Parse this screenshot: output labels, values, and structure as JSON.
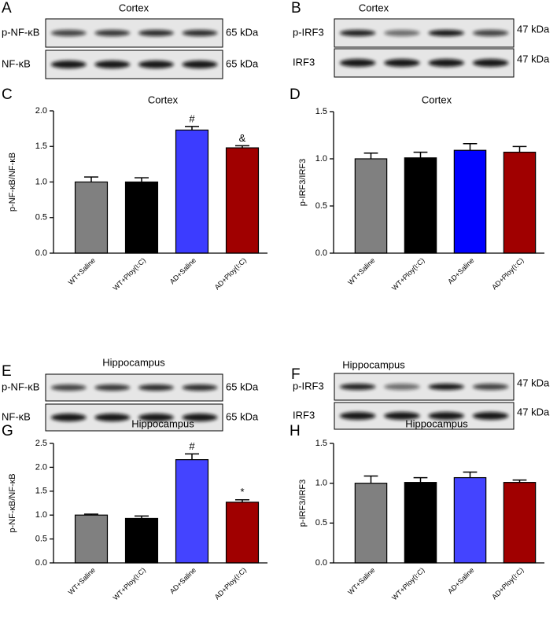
{
  "blots": [
    {
      "letter": "A",
      "title": "Cortex",
      "rows": [
        {
          "label": "p-NF-κB",
          "size": "65 kDa"
        },
        {
          "label": "NF-κB",
          "size": "65 kDa"
        }
      ]
    },
    {
      "letter": "B",
      "title": "Cortex",
      "rows": [
        {
          "label": "p-IRF3",
          "size": "47 kDa"
        },
        {
          "label": "IRF3",
          "size": "47 kDa"
        }
      ]
    },
    {
      "letter": "E",
      "title": "Hippocampus",
      "rows": [
        {
          "label": "p-NF-κB",
          "size": "65 kDa"
        },
        {
          "label": "NF-κB",
          "size": "65 kDa"
        }
      ]
    },
    {
      "letter": "F",
      "title": "Hippocampus",
      "rows": [
        {
          "label": "p-IRF3",
          "size": "47 kDa"
        },
        {
          "label": "IRF3",
          "size": "47 kDa"
        }
      ]
    }
  ],
  "chart_data": [
    {
      "type": "bar",
      "letter": "C",
      "title": "Cortex",
      "ylabel": "p-NF-κB/NF-κB",
      "categories": [
        "WT+Saline",
        "WT+Ploy(I:C)",
        "AD+Saline",
        "AD+Ploy(I:C)"
      ],
      "values": [
        1.0,
        1.0,
        1.73,
        1.48
      ],
      "errors": [
        0.07,
        0.06,
        0.05,
        0.03
      ],
      "colors": [
        "#808080",
        "#000000",
        "#3c3cff",
        "#a00000"
      ],
      "markers": [
        null,
        null,
        "#",
        "&"
      ],
      "ylim": [
        0,
        2
      ],
      "yticks": [
        {
          "value": 0,
          "label": "0.0"
        },
        {
          "value": 0.5,
          "label": "0.5"
        },
        {
          "value": 1,
          "label": "1.0"
        },
        {
          "value": 1.5,
          "label": "1.5"
        },
        {
          "value": 2,
          "label": "2.0"
        }
      ]
    },
    {
      "type": "bar",
      "letter": "D",
      "title": "Cortex",
      "ylabel": "p-IRF3/IRF3",
      "categories": [
        "WT+Saline",
        "WT+Ploy(I:C)",
        "AD+Saline",
        "AD+Ploy(I:C)"
      ],
      "values": [
        1.0,
        1.01,
        1.09,
        1.07
      ],
      "errors": [
        0.06,
        0.06,
        0.07,
        0.06
      ],
      "colors": [
        "#808080",
        "#000000",
        "#0000ff",
        "#a00000"
      ],
      "markers": [
        null,
        null,
        null,
        null
      ],
      "ylim": [
        0,
        1.5
      ],
      "yticks": [
        {
          "value": 0,
          "label": "0.0"
        },
        {
          "value": 0.5,
          "label": "0.5"
        },
        {
          "value": 1,
          "label": "1.0"
        },
        {
          "value": 1.5,
          "label": "1.5"
        }
      ]
    },
    {
      "type": "bar",
      "letter": "G",
      "title": "Hippocampus",
      "ylabel": "p-NF-κB/NF-κB",
      "categories": [
        "WT+Saline",
        "WT+Ploy(I:C)",
        "AD+Saline",
        "AD+Ploy(I:C)"
      ],
      "values": [
        1.0,
        0.93,
        2.16,
        1.27
      ],
      "errors": [
        0.02,
        0.05,
        0.12,
        0.05
      ],
      "colors": [
        "#808080",
        "#000000",
        "#4444ff",
        "#a00000"
      ],
      "markers": [
        null,
        null,
        "#",
        "*"
      ],
      "ylim": [
        0,
        2.5
      ],
      "yticks": [
        {
          "value": 0,
          "label": "0.0"
        },
        {
          "value": 0.5,
          "label": "0.5"
        },
        {
          "value": 1,
          "label": "1.0"
        },
        {
          "value": 1.5,
          "label": "1.5"
        },
        {
          "value": 2,
          "label": "2.0"
        },
        {
          "value": 2.5,
          "label": "2.5"
        }
      ]
    },
    {
      "type": "bar",
      "letter": "H",
      "title": "Hippocampus",
      "ylabel": "p-IRF3/IRF3",
      "categories": [
        "WT+Saline",
        "WT+Ploy(I:C)",
        "AD+Saline",
        "AD+Ploy(I:C)"
      ],
      "values": [
        1.0,
        1.01,
        1.07,
        1.01
      ],
      "errors": [
        0.09,
        0.06,
        0.07,
        0.03
      ],
      "colors": [
        "#808080",
        "#000000",
        "#4444ff",
        "#a00000"
      ],
      "markers": [
        null,
        null,
        null,
        null
      ],
      "ylim": [
        0,
        1.5
      ],
      "yticks": [
        {
          "value": 0,
          "label": "0.0"
        },
        {
          "value": 0.5,
          "label": "0.5"
        },
        {
          "value": 1,
          "label": "1.0"
        },
        {
          "value": 1.5,
          "label": "1.5"
        }
      ]
    }
  ]
}
